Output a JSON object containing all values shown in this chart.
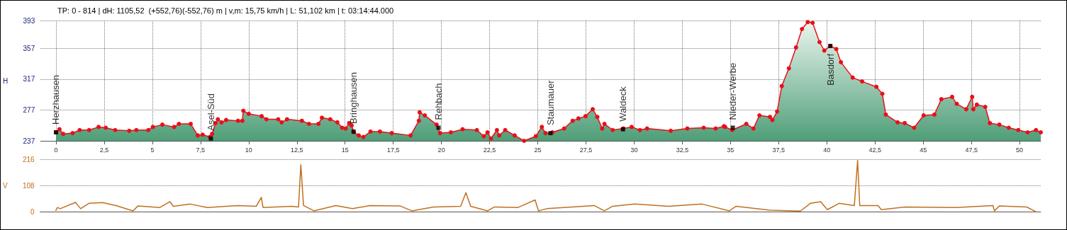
{
  "chart_data": [
    {
      "type": "area",
      "title": "TP: 0 - 814 | dH: 1105,52  (+552,76)(-552,76) m | v,m: 15,75 km/h | L: 51,102 km | t: 03:14:44.000",
      "ylabel": "H",
      "series": [
        {
          "color": "#e8101a",
          "x": [
            0,
            0.18,
            0.37,
            0.86,
            1.23,
            1.72,
            2.21,
            2.58,
            3.07,
            3.8,
            4.17,
            4.79,
            5.03,
            5.52,
            6.13,
            6.38,
            6.99,
            7.36,
            7.61,
            7.98,
            8.1,
            8.28,
            8.4,
            8.59,
            8.83,
            9.45,
            9.67,
            9.72,
            10,
            10.67,
            10.92,
            11.53,
            11.71,
            11.99,
            12.76,
            13.13,
            13.62,
            13.8,
            14.23,
            14.6,
            14.85,
            15.03,
            15.21,
            15.34,
            15.46,
            15.71,
            15.95,
            16.32,
            16.81,
            17.42,
            18.4,
            18.83,
            18.87,
            19.14,
            19.75,
            19.93,
            20.49,
            21.1,
            21.84,
            22.2,
            22.39,
            22.57,
            22.88,
            23,
            23.31,
            23.8,
            24.29,
            24.9,
            25.21,
            25.4,
            25.76,
            26.37,
            26.81,
            27.11,
            27.48,
            27.85,
            28.09,
            28.34,
            28.46,
            28.89,
            29.44,
            29.87,
            30.3,
            30.67,
            31.9,
            32.76,
            33.61,
            34.23,
            34.66,
            34.72,
            35.09,
            35.82,
            36.19,
            36.5,
            37.05,
            37.17,
            37.42,
            37.66,
            38.03,
            38.4,
            38.71,
            39.01,
            39.26,
            39.62,
            39.87,
            40.18,
            40.49,
            40.73,
            41.34,
            41.83,
            42.57,
            42.88,
            43.06,
            43.67,
            44.04,
            44.53,
            45.02,
            45.58,
            45.94,
            46.5,
            46.74,
            47.23,
            47.54,
            47.6,
            47.78,
            48.22,
            48.46,
            48.95,
            49.44,
            49.93,
            50.42,
            50.85,
            51.1
          ],
          "values": [
            248,
            252,
            246,
            247,
            251,
            251,
            255,
            254,
            251,
            250,
            251,
            251,
            255,
            258,
            255,
            259,
            259,
            244,
            245,
            242,
            246,
            260,
            265,
            261,
            264,
            263,
            263,
            276,
            272,
            269,
            265,
            265,
            261,
            265,
            263,
            259,
            259,
            267,
            265,
            261,
            254,
            253,
            260,
            257,
            248,
            244,
            242,
            249,
            249,
            247,
            244,
            263,
            274,
            270,
            258,
            247,
            248,
            252,
            251,
            243,
            248,
            240,
            251,
            244,
            251,
            244,
            237,
            243,
            255,
            247,
            248,
            253,
            263,
            266,
            269,
            278,
            268,
            253,
            259,
            251,
            253,
            255,
            251,
            253,
            250,
            253,
            254,
            253,
            256,
            255,
            251,
            259,
            253,
            270,
            268,
            264,
            275,
            308,
            331,
            358,
            382,
            391,
            390,
            365,
            354,
            360,
            356,
            339,
            319,
            314,
            307,
            298,
            271,
            261,
            260,
            254,
            270,
            271,
            291,
            294,
            285,
            278,
            294,
            278,
            284,
            281,
            260,
            258,
            254,
            251,
            248,
            251,
            248
          ]
        }
      ],
      "xlim": [
        -0.8,
        51.1
      ],
      "xticks": [
        0,
        {
          "value": 2.5,
          "label": "2,5"
        },
        5,
        {
          "value": 7.5,
          "label": "7,5"
        },
        10,
        {
          "value": 12.5,
          "label": "12,5"
        },
        15,
        {
          "value": 17.5,
          "label": "17,5"
        },
        20,
        {
          "value": 22.5,
          "label": "22,5"
        },
        25,
        {
          "value": 27.5,
          "label": "27,5"
        },
        30,
        {
          "value": 32.5,
          "label": "32,5"
        },
        35,
        {
          "value": 37.5,
          "label": "37,5"
        },
        40,
        {
          "value": 42.5,
          "label": "42,5"
        },
        45,
        {
          "value": 47.5,
          "label": "47,5"
        },
        50
      ],
      "ylim": [
        237,
        393
      ],
      "yticks": [
        237,
        277,
        317,
        357,
        393
      ],
      "grid": true,
      "marker": "circle",
      "annotations": [
        {
          "text": "Herzhausen",
          "x": 0,
          "y": 248
        },
        {
          "text": "Asel-Süd",
          "x": 8.04,
          "y": 240
        },
        {
          "text": "Bringhausen",
          "x": 15.44,
          "y": 249
        },
        {
          "text": "Rehbach",
          "x": 19.85,
          "y": 254
        },
        {
          "text": "Staumauer",
          "x": 25.66,
          "y": 247
        },
        {
          "text": "Waldeck",
          "x": 29.42,
          "y": 252
        },
        {
          "text": "Nieder-Werbe",
          "x": 35.12,
          "y": 254
        },
        {
          "text": "Basdorf",
          "x": 40.18,
          "y": 360
        }
      ]
    },
    {
      "type": "line",
      "ylabel": "V",
      "series": [
        {
          "color": "#c0701e",
          "x": [
            0,
            0.1,
            0.24,
            1.03,
            1.3,
            1.73,
            2.44,
            3.14,
            4.01,
            4.27,
            5.41,
            5.93,
            6.11,
            6.99,
            7.86,
            9.44,
            10.41,
            10.67,
            10.76,
            12.25,
            12.6,
            12.72,
            12.86,
            13.4,
            14.53,
            15.4,
            16.3,
            17.88,
            18.47,
            19.61,
            21.01,
            21.28,
            21.53,
            22.41,
            22.76,
            23.99,
            24.87,
            25.05,
            25.48,
            26.36,
            27.94,
            28.46,
            28.9,
            30.04,
            31.79,
            33.54,
            34.95,
            35.3,
            37.05,
            38.63,
            39.15,
            39.68,
            40.03,
            40.64,
            41.43,
            41.6,
            41.71,
            42.66,
            42.83,
            44.06,
            46.69,
            48.62,
            48.7,
            48.95,
            50.37,
            50.86
          ],
          "values": [
            4,
            18,
            13,
            39,
            13,
            35,
            38,
            26,
            4,
            24,
            18,
            42,
            23,
            32,
            18,
            26,
            23,
            60,
            18,
            23,
            20,
            195,
            26,
            4,
            26,
            13,
            26,
            24,
            4,
            20,
            23,
            79,
            23,
            4,
            20,
            18,
            49,
            4,
            13,
            18,
            26,
            4,
            23,
            32,
            23,
            32,
            4,
            23,
            7,
            3,
            35,
            42,
            9,
            35,
            26,
            213,
            26,
            26,
            9,
            20,
            18,
            26,
            4,
            24,
            20,
            0
          ]
        }
      ],
      "xlim": [
        -0.8,
        51.1
      ],
      "ylim": [
        0,
        216
      ],
      "yticks": [
        0,
        108,
        216
      ],
      "grid": "y",
      "tick_labels": "y",
      "marker": "none"
    }
  ]
}
